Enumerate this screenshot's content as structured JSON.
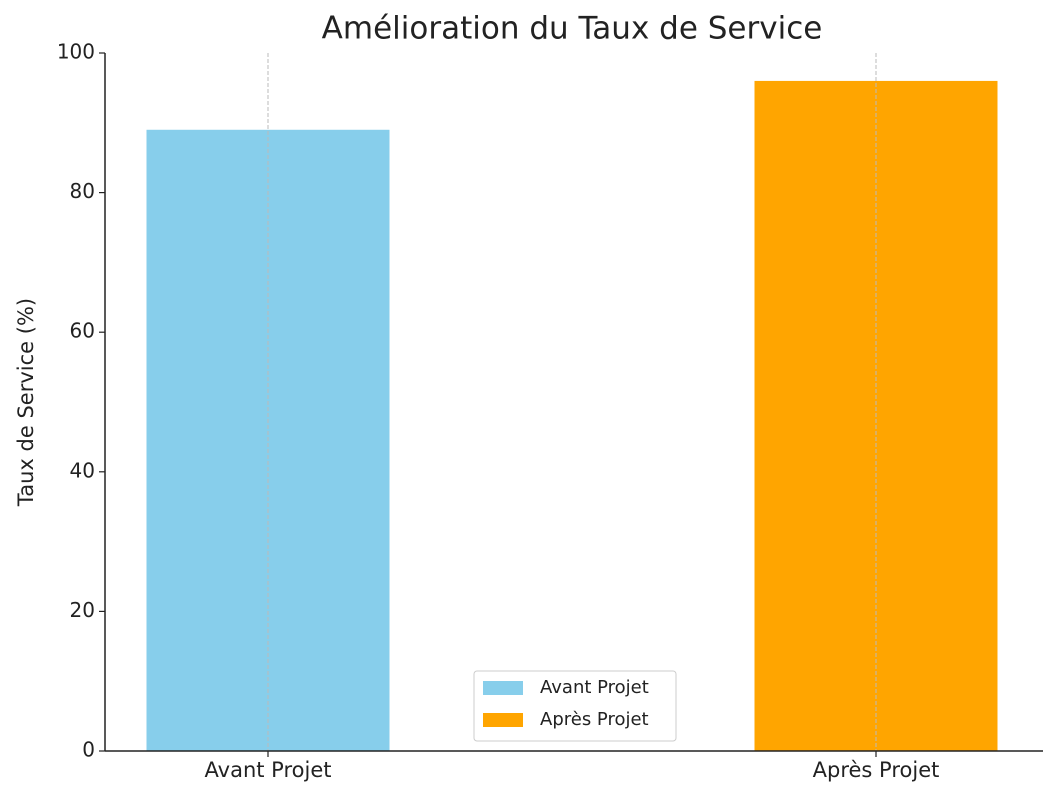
{
  "chart_data": {
    "type": "bar",
    "title": "Amélioration du Taux de Service",
    "y_label": "Taux de Service (%)",
    "categories": [
      "Avant Projet",
      "Après Projet"
    ],
    "values": [
      89,
      96
    ],
    "colors": [
      "#87ceeb",
      "#ffa500"
    ],
    "ylim": [
      0,
      100
    ],
    "yticks": [
      0,
      20,
      40,
      60,
      80,
      100
    ],
    "grid": true,
    "legend": "lower center"
  }
}
